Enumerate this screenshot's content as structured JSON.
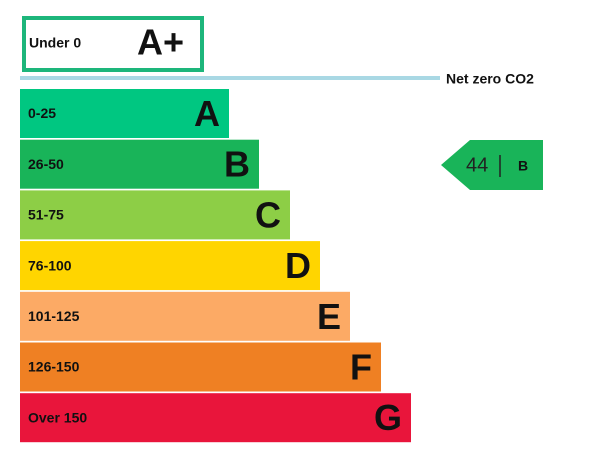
{
  "top": {
    "label": "Under 0",
    "letter": "A+"
  },
  "net_zero": "Net zero CO2",
  "bands": [
    {
      "range": "0-25",
      "letter": "A",
      "color": "#00c781"
    },
    {
      "range": "26-50",
      "letter": "B",
      "color": "#19b459"
    },
    {
      "range": "51-75",
      "letter": "C",
      "color": "#8dce46"
    },
    {
      "range": "76-100",
      "letter": "D",
      "color": "#ffd500"
    },
    {
      "range": "101-125",
      "letter": "E",
      "color": "#fcaa65"
    },
    {
      "range": "126-150",
      "letter": "F",
      "color": "#ef8023"
    },
    {
      "range": "Over 150",
      "letter": "G",
      "color": "#e9153b"
    }
  ],
  "current": {
    "score": 44,
    "letter": "B",
    "color": "#19b459"
  }
}
